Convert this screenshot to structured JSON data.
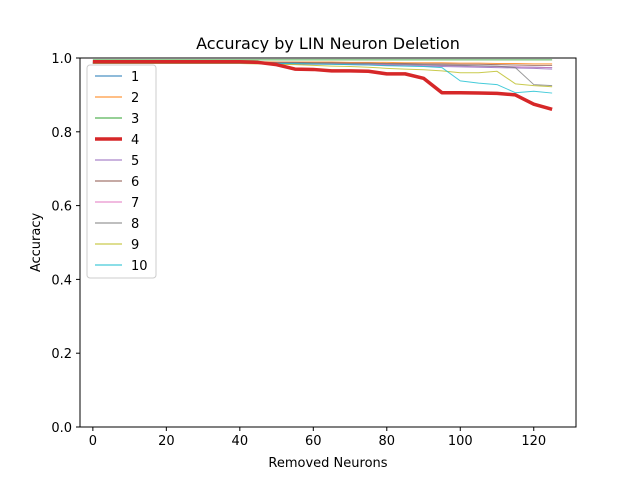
{
  "chart_data": {
    "type": "line",
    "title": "Accuracy by LIN Neuron Deletion",
    "xlabel": "Removed Neurons",
    "ylabel": "Accuracy",
    "xlim": [
      -3.5,
      131.5
    ],
    "ylim": [
      0.0,
      1.0
    ],
    "xticks": [
      0,
      20,
      40,
      60,
      80,
      100,
      120
    ],
    "yticks": [
      0.0,
      0.2,
      0.4,
      0.6,
      0.8,
      1.0
    ],
    "grid": false,
    "legend_position": "upper-left",
    "highlighted_series": "4",
    "x": [
      0,
      5,
      10,
      15,
      20,
      25,
      30,
      35,
      40,
      45,
      50,
      55,
      60,
      65,
      70,
      75,
      80,
      85,
      90,
      95,
      100,
      105,
      110,
      115,
      120,
      125
    ],
    "series": [
      {
        "name": "1",
        "color": "#1f77b4",
        "values": [
          0.986,
          0.986,
          0.986,
          0.986,
          0.986,
          0.986,
          0.986,
          0.986,
          0.986,
          0.985,
          0.985,
          0.984,
          0.984,
          0.984,
          0.983,
          0.983,
          0.982,
          0.982,
          0.981,
          0.98,
          0.979,
          0.978,
          0.977,
          0.976,
          0.975,
          0.974
        ]
      },
      {
        "name": "2",
        "color": "#ff7f0e",
        "values": [
          0.99,
          0.99,
          0.99,
          0.99,
          0.99,
          0.99,
          0.99,
          0.99,
          0.99,
          0.99,
          0.989,
          0.989,
          0.989,
          0.989,
          0.988,
          0.988,
          0.988,
          0.987,
          0.987,
          0.987,
          0.986,
          0.986,
          0.985,
          0.985,
          0.984,
          0.984
        ]
      },
      {
        "name": "3",
        "color": "#2ca02c",
        "values": [
          0.995,
          0.995,
          0.995,
          0.995,
          0.995,
          0.995,
          0.995,
          0.995,
          0.995,
          0.995,
          0.995,
          0.995,
          0.995,
          0.995,
          0.995,
          0.995,
          0.995,
          0.995,
          0.995,
          0.995,
          0.995,
          0.995,
          0.995,
          0.995,
          0.995,
          0.995
        ]
      },
      {
        "name": "4",
        "color": "#d62728",
        "values": [
          0.99,
          0.99,
          0.99,
          0.99,
          0.99,
          0.99,
          0.99,
          0.99,
          0.99,
          0.988,
          0.982,
          0.97,
          0.969,
          0.965,
          0.965,
          0.964,
          0.957,
          0.957,
          0.945,
          0.906,
          0.906,
          0.905,
          0.904,
          0.9,
          0.875,
          0.861
        ]
      },
      {
        "name": "5",
        "color": "#9467bd",
        "values": [
          0.985,
          0.985,
          0.985,
          0.985,
          0.985,
          0.985,
          0.985,
          0.985,
          0.985,
          0.985,
          0.984,
          0.984,
          0.983,
          0.983,
          0.982,
          0.981,
          0.98,
          0.979,
          0.978,
          0.977,
          0.976,
          0.975,
          0.974,
          0.973,
          0.972,
          0.97
        ]
      },
      {
        "name": "6",
        "color": "#8c564b",
        "values": [
          0.989,
          0.989,
          0.989,
          0.989,
          0.989,
          0.989,
          0.989,
          0.989,
          0.989,
          0.988,
          0.988,
          0.988,
          0.987,
          0.987,
          0.986,
          0.986,
          0.985,
          0.985,
          0.984,
          0.984,
          0.983,
          0.983,
          0.982,
          0.981,
          0.98,
          0.98
        ]
      },
      {
        "name": "7",
        "color": "#e377c2",
        "values": [
          0.987,
          0.987,
          0.987,
          0.987,
          0.987,
          0.987,
          0.987,
          0.987,
          0.987,
          0.987,
          0.986,
          0.986,
          0.985,
          0.985,
          0.984,
          0.983,
          0.982,
          0.982,
          0.981,
          0.98,
          0.979,
          0.978,
          0.977,
          0.976,
          0.975,
          0.974
        ]
      },
      {
        "name": "8",
        "color": "#7f7f7f",
        "values": [
          0.988,
          0.988,
          0.988,
          0.988,
          0.988,
          0.988,
          0.988,
          0.988,
          0.988,
          0.988,
          0.987,
          0.987,
          0.986,
          0.986,
          0.985,
          0.985,
          0.984,
          0.983,
          0.982,
          0.981,
          0.98,
          0.979,
          0.978,
          0.974,
          0.928,
          0.925
        ]
      },
      {
        "name": "9",
        "color": "#bcbd22",
        "values": [
          0.985,
          0.985,
          0.985,
          0.985,
          0.985,
          0.985,
          0.985,
          0.985,
          0.985,
          0.984,
          0.983,
          0.982,
          0.98,
          0.978,
          0.977,
          0.975,
          0.972,
          0.97,
          0.968,
          0.965,
          0.96,
          0.96,
          0.964,
          0.93,
          0.925,
          0.922
        ]
      },
      {
        "name": "10",
        "color": "#17becf",
        "values": [
          0.986,
          0.986,
          0.986,
          0.986,
          0.986,
          0.986,
          0.986,
          0.986,
          0.986,
          0.986,
          0.985,
          0.985,
          0.984,
          0.983,
          0.982,
          0.981,
          0.979,
          0.978,
          0.977,
          0.974,
          0.938,
          0.932,
          0.928,
          0.906,
          0.91,
          0.905
        ]
      }
    ]
  }
}
